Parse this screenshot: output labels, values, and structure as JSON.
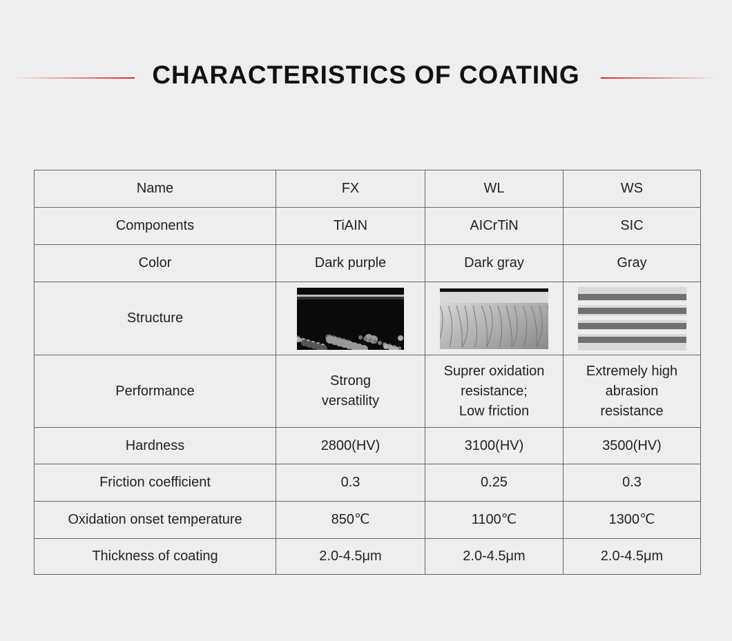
{
  "header": {
    "title": "CHARACTERISTICS OF COATING"
  },
  "table": {
    "columns": [
      "Name",
      "FX",
      "WL",
      "WS"
    ],
    "rows": [
      [
        "Components",
        "TiAIN",
        "AICrTiN",
        "SIC"
      ],
      [
        "Color",
        "Dark purple",
        "Dark gray",
        "Gray"
      ],
      [
        "Structure"
      ],
      [
        "Performance",
        "Strong\nversatility",
        "Suprer oxidation\nresistance;\nLow friction",
        "Extremely high\nabrasion\nresistance"
      ],
      [
        "Hardness",
        "2800(HV)",
        "3100(HV)",
        "3500(HV)"
      ],
      [
        "Friction coefficient",
        "0.3",
        "0.25",
        "0.3"
      ],
      [
        "Oxidation onset temperature",
        "850℃",
        "1100℃",
        "1300℃"
      ],
      [
        "Thickness of coating",
        "2.0-4.5μm",
        "2.0-4.5μm",
        "2.0-4.5μm"
      ]
    ]
  }
}
